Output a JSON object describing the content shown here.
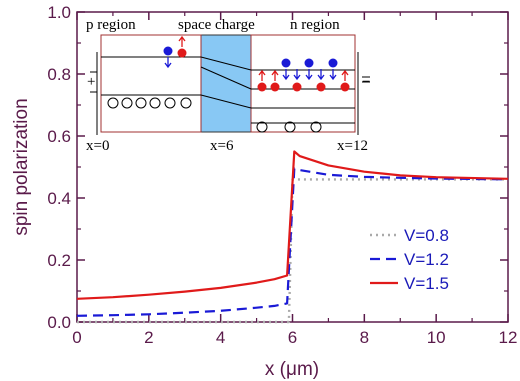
{
  "chart_data": {
    "type": "line",
    "xlabel": "x (μm)",
    "ylabel": "spin polarization",
    "xlim": [
      0,
      12
    ],
    "ylim": [
      0,
      1.0
    ],
    "x_ticks": [
      "0",
      "2",
      "4",
      "6",
      "8",
      "10",
      "12"
    ],
    "y_ticks": [
      "0.0",
      "0.2",
      "0.4",
      "0.6",
      "0.8",
      "1.0"
    ],
    "legend_position": "center-right",
    "series": [
      {
        "name": "V=0.8",
        "color": "#aaaaaa",
        "style": "dotted",
        "x": [
          0,
          5.8,
          5.9,
          6.0,
          6.2,
          7,
          8,
          10,
          12
        ],
        "y": [
          0.0,
          0.0,
          0.0,
          0.46,
          0.46,
          0.46,
          0.46,
          0.46,
          0.46
        ]
      },
      {
        "name": "V=1.2",
        "color": "#1a1ad6",
        "style": "dashed",
        "x": [
          0,
          1,
          2,
          3,
          4,
          5,
          5.5,
          5.85,
          6.05,
          6.2,
          7,
          8,
          9,
          10,
          12
        ],
        "y": [
          0.02,
          0.022,
          0.025,
          0.03,
          0.036,
          0.046,
          0.052,
          0.06,
          0.495,
          0.49,
          0.475,
          0.468,
          0.465,
          0.463,
          0.46
        ]
      },
      {
        "name": "V=1.5",
        "color": "#e01a1a",
        "style": "solid",
        "x": [
          0,
          1,
          2,
          3,
          4,
          5,
          5.5,
          5.85,
          6.05,
          6.2,
          7,
          8,
          9,
          10,
          12
        ],
        "y": [
          0.075,
          0.08,
          0.088,
          0.098,
          0.11,
          0.127,
          0.138,
          0.15,
          0.55,
          0.535,
          0.505,
          0.485,
          0.473,
          0.467,
          0.462
        ]
      }
    ],
    "inset": {
      "labels": {
        "p_region": "p  region",
        "space_charge": "space  charge",
        "n_region": "n  region",
        "x0": "x=0",
        "x6": "x=6",
        "x12": "x=12",
        "plus": "+",
        "minus": "−"
      }
    }
  }
}
